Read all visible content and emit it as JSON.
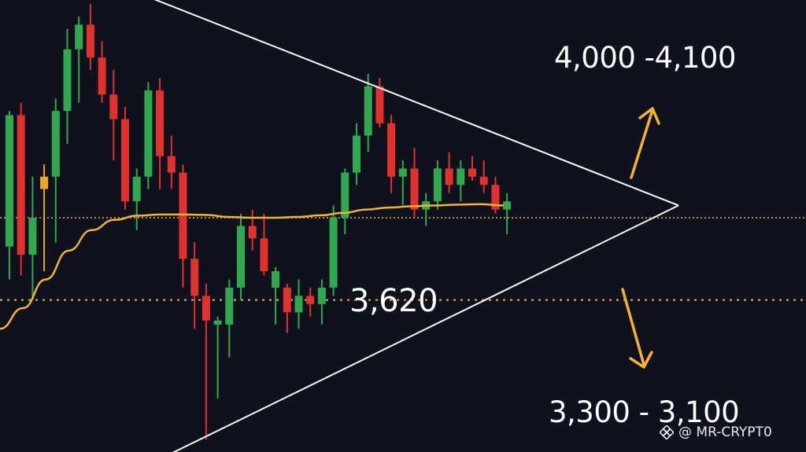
{
  "colors": {
    "background": "#0f111c",
    "bullish": "#2fa84f",
    "bearish": "#e0312f",
    "neutral": "#f0a521",
    "moving_average": "#f2b233",
    "triangle": "#ffffff",
    "arrows": "#f2b233",
    "level_line": "#f0b43a"
  },
  "labels": {
    "target_up": "4,000 -4,100",
    "pivot": "3,620",
    "target_down": "3,300 - 3,100"
  },
  "watermark": {
    "text": "@ MR-CRYPT0",
    "icon": "binance-diamond-icon"
  },
  "chart_data": {
    "type": "candlestick",
    "pattern": "symmetrical-triangle",
    "y_range": [
      3050,
      4150
    ],
    "grid": false,
    "legend": "none",
    "candles": [
      {
        "o": 3550,
        "h": 3880,
        "l": 3470,
        "c": 3870,
        "dir": "up"
      },
      {
        "o": 3870,
        "h": 3900,
        "l": 3480,
        "c": 3530,
        "dir": "down"
      },
      {
        "o": 3530,
        "h": 3720,
        "l": 3420,
        "c": 3620,
        "dir": "up"
      },
      {
        "o": 3690,
        "h": 3750,
        "l": 3490,
        "c": 3720,
        "dir": "neutral"
      },
      {
        "o": 3720,
        "h": 3910,
        "l": 3560,
        "c": 3880,
        "dir": "up"
      },
      {
        "o": 3880,
        "h": 4080,
        "l": 3800,
        "c": 4030,
        "dir": "up"
      },
      {
        "o": 4030,
        "h": 4110,
        "l": 3900,
        "c": 4090,
        "dir": "up"
      },
      {
        "o": 4090,
        "h": 4140,
        "l": 3980,
        "c": 4010,
        "dir": "down"
      },
      {
        "o": 4010,
        "h": 4050,
        "l": 3900,
        "c": 3920,
        "dir": "down"
      },
      {
        "o": 3920,
        "h": 3980,
        "l": 3760,
        "c": 3860,
        "dir": "down"
      },
      {
        "o": 3860,
        "h": 3890,
        "l": 3640,
        "c": 3660,
        "dir": "down"
      },
      {
        "o": 3660,
        "h": 3740,
        "l": 3590,
        "c": 3720,
        "dir": "up"
      },
      {
        "o": 3720,
        "h": 3950,
        "l": 3690,
        "c": 3930,
        "dir": "up"
      },
      {
        "o": 3930,
        "h": 3960,
        "l": 3690,
        "c": 3770,
        "dir": "down"
      },
      {
        "o": 3770,
        "h": 3820,
        "l": 3690,
        "c": 3730,
        "dir": "down"
      },
      {
        "o": 3730,
        "h": 3750,
        "l": 3450,
        "c": 3520,
        "dir": "down"
      },
      {
        "o": 3520,
        "h": 3560,
        "l": 3350,
        "c": 3430,
        "dir": "down"
      },
      {
        "o": 3430,
        "h": 3460,
        "l": 3080,
        "c": 3370,
        "dir": "down"
      },
      {
        "o": 3370,
        "h": 3380,
        "l": 3180,
        "c": 3360,
        "dir": "up"
      },
      {
        "o": 3360,
        "h": 3470,
        "l": 3280,
        "c": 3450,
        "dir": "up"
      },
      {
        "o": 3450,
        "h": 3630,
        "l": 3420,
        "c": 3600,
        "dir": "up"
      },
      {
        "o": 3600,
        "h": 3640,
        "l": 3540,
        "c": 3570,
        "dir": "down"
      },
      {
        "o": 3570,
        "h": 3630,
        "l": 3480,
        "c": 3490,
        "dir": "down"
      },
      {
        "o": 3490,
        "h": 3500,
        "l": 3360,
        "c": 3450,
        "dir": "up"
      },
      {
        "o": 3450,
        "h": 3460,
        "l": 3340,
        "c": 3390,
        "dir": "down"
      },
      {
        "o": 3390,
        "h": 3470,
        "l": 3350,
        "c": 3430,
        "dir": "up"
      },
      {
        "o": 3430,
        "h": 3450,
        "l": 3380,
        "c": 3410,
        "dir": "down"
      },
      {
        "o": 3410,
        "h": 3470,
        "l": 3360,
        "c": 3450,
        "dir": "up"
      },
      {
        "o": 3450,
        "h": 3650,
        "l": 3430,
        "c": 3620,
        "dir": "up"
      },
      {
        "o": 3620,
        "h": 3740,
        "l": 3580,
        "c": 3730,
        "dir": "up"
      },
      {
        "o": 3730,
        "h": 3850,
        "l": 3700,
        "c": 3820,
        "dir": "up"
      },
      {
        "o": 3820,
        "h": 3970,
        "l": 3780,
        "c": 3940,
        "dir": "up"
      },
      {
        "o": 3940,
        "h": 3960,
        "l": 3840,
        "c": 3850,
        "dir": "down"
      },
      {
        "o": 3850,
        "h": 3870,
        "l": 3680,
        "c": 3720,
        "dir": "down"
      },
      {
        "o": 3720,
        "h": 3760,
        "l": 3650,
        "c": 3740,
        "dir": "up"
      },
      {
        "o": 3740,
        "h": 3790,
        "l": 3620,
        "c": 3640,
        "dir": "down"
      },
      {
        "o": 3640,
        "h": 3680,
        "l": 3600,
        "c": 3660,
        "dir": "up"
      },
      {
        "o": 3660,
        "h": 3760,
        "l": 3640,
        "c": 3740,
        "dir": "up"
      },
      {
        "o": 3740,
        "h": 3780,
        "l": 3680,
        "c": 3700,
        "dir": "down"
      },
      {
        "o": 3700,
        "h": 3760,
        "l": 3660,
        "c": 3740,
        "dir": "up"
      },
      {
        "o": 3740,
        "h": 3770,
        "l": 3710,
        "c": 3720,
        "dir": "down"
      },
      {
        "o": 3720,
        "h": 3760,
        "l": 3680,
        "c": 3700,
        "dir": "down"
      },
      {
        "o": 3700,
        "h": 3720,
        "l": 3630,
        "c": 3640,
        "dir": "down"
      },
      {
        "o": 3640,
        "h": 3680,
        "l": 3580,
        "c": 3660,
        "dir": "up"
      }
    ],
    "moving_average": [
      3350,
      3400,
      3470,
      3540,
      3590,
      3615,
      3625,
      3628,
      3628,
      3627,
      3622,
      3620,
      3620,
      3622,
      3626,
      3632,
      3640,
      3645,
      3648,
      3650,
      3652,
      3653,
      3650
    ],
    "triangle": {
      "upper": [
        [
          0,
          4160
        ],
        [
          60,
          3650
        ]
      ],
      "lower": [
        [
          0,
          3030
        ],
        [
          60,
          3650
        ]
      ]
    },
    "levels": [
      {
        "value": 3620,
        "style": "dotted"
      },
      {
        "value": 3420,
        "style": "dotted"
      }
    ],
    "scenarios": [
      {
        "direction": "up",
        "target": "4,000 -4,100"
      },
      {
        "direction": "down",
        "target": "3,300 - 3,100"
      }
    ]
  }
}
